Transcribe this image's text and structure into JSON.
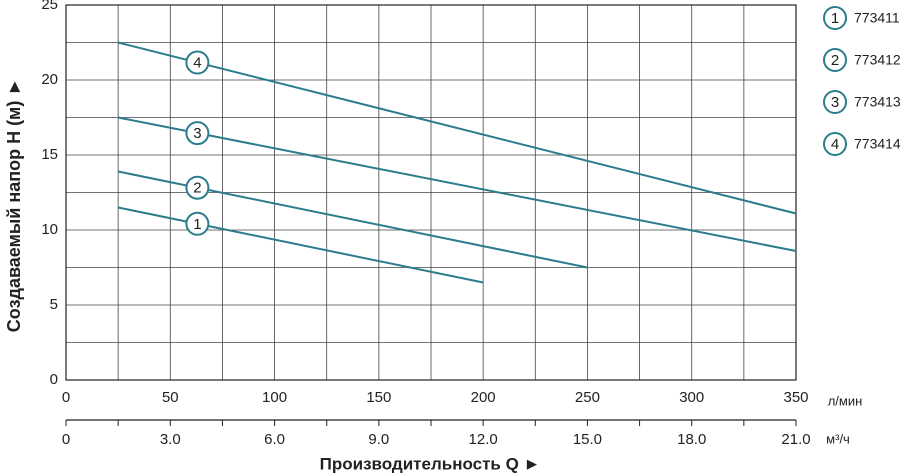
{
  "chart_data": {
    "type": "line",
    "ylabel": "Создаваемый напор Н (м) ►",
    "xlabel": "Производительность Q ►",
    "xunit": "л/мин",
    "x2unit": "м³/ч",
    "xlim": [
      0,
      350
    ],
    "xticks": [
      0,
      50,
      100,
      150,
      200,
      250,
      300,
      350
    ],
    "xminorticks": [
      25,
      75,
      125,
      175,
      225,
      275,
      325
    ],
    "x2lim": [
      0,
      21
    ],
    "x2ticks": [
      0,
      {
        "value": 3,
        "label": "3.0"
      },
      {
        "value": 6,
        "label": "6.0"
      },
      {
        "value": 9,
        "label": "9.0"
      },
      {
        "value": 12,
        "label": "12.0"
      },
      {
        "value": 15,
        "label": "15.0"
      },
      {
        "value": 18,
        "label": "18.0"
      },
      {
        "value": 21,
        "label": "21.0"
      }
    ],
    "x2minorticks": [
      1.5,
      4.5,
      7.5,
      10.5,
      13.5,
      16.5,
      19.5
    ],
    "ylim": [
      0,
      25
    ],
    "yticks": [
      0,
      5,
      10,
      15,
      20,
      25
    ],
    "yminorticks": [
      2.5,
      7.5,
      12.5,
      17.5,
      22.5
    ],
    "grid": true,
    "series": [
      {
        "name": "773411",
        "label": "1",
        "color": "#2b7c8c",
        "x": [
          25,
          200
        ],
        "values": [
          11.5,
          6.5
        ]
      },
      {
        "name": "773412",
        "label": "2",
        "color": "#2b7c8c",
        "x": [
          25,
          250
        ],
        "values": [
          13.9,
          7.5
        ]
      },
      {
        "name": "773413",
        "label": "3",
        "color": "#2b7c8c",
        "x": [
          25,
          350
        ],
        "values": [
          17.5,
          8.6
        ]
      },
      {
        "name": "773414",
        "label": "4",
        "color": "#2b7c8c",
        "x": [
          25,
          350
        ],
        "values": [
          22.5,
          11.1
        ]
      }
    ]
  }
}
